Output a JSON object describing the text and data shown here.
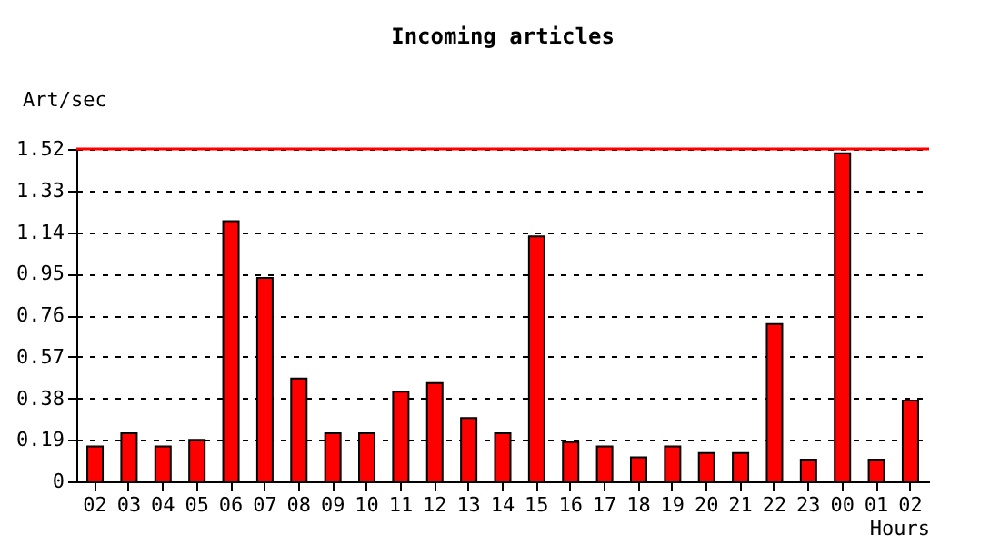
{
  "chart_data": {
    "type": "bar",
    "title": "Incoming articles",
    "ylabel": "Art/sec",
    "xlabel": "Hours",
    "categories": [
      "02",
      "03",
      "04",
      "05",
      "06",
      "07",
      "08",
      "09",
      "10",
      "11",
      "12",
      "13",
      "14",
      "15",
      "16",
      "17",
      "18",
      "19",
      "20",
      "21",
      "22",
      "23",
      "00",
      "01",
      "02"
    ],
    "values": [
      0.16,
      0.22,
      0.16,
      0.19,
      1.19,
      0.93,
      0.47,
      0.22,
      0.22,
      0.41,
      0.45,
      0.29,
      0.22,
      1.12,
      0.18,
      0.16,
      0.11,
      0.16,
      0.13,
      0.13,
      0.72,
      0.1,
      1.5,
      0.1,
      0.37
    ],
    "color": "#ff0000",
    "ylim": [
      0,
      1.52
    ],
    "yticks": [
      0,
      0.19,
      0.38,
      0.57,
      0.76,
      0.95,
      1.14,
      1.33,
      1.52
    ],
    "grid": "y",
    "ref_lines": [
      {
        "axis": "y",
        "value": 1.52,
        "color": "#ff0000"
      }
    ]
  }
}
